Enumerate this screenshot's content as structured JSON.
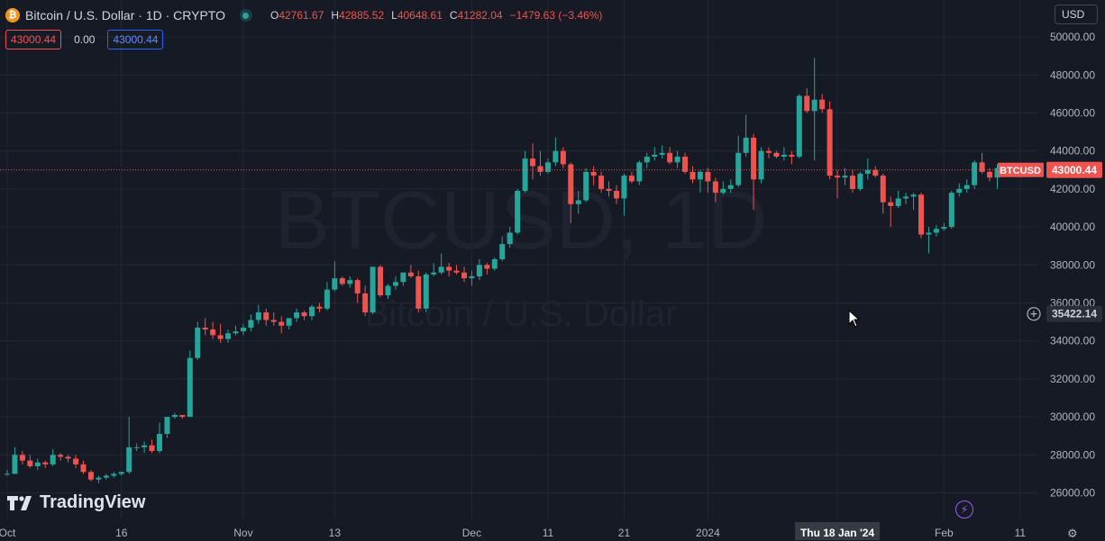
{
  "header": {
    "coin_glyph": "₿",
    "symbol_title": "Bitcoin / U.S. Dollar · 1D · CRYPTO",
    "ohlc": [
      {
        "key": "O",
        "value": "42761.67"
      },
      {
        "key": "H",
        "value": "42885.52"
      },
      {
        "key": "L",
        "value": "40648.61"
      },
      {
        "key": "C",
        "value": "41282.04"
      },
      {
        "key": "",
        "value": "−1479.63 (−3.46%)"
      }
    ],
    "sell_price": "43000.44",
    "spread": "0.00",
    "buy_price": "43000.44"
  },
  "currency_selector": "USD",
  "logo_text": "TradingView",
  "watermark": {
    "line1": "BTCUSD, 1D",
    "line2": "Bitcoin / U.S. Dollar"
  },
  "colors": {
    "up": "#26a69a",
    "down": "#ef5350",
    "background": "#161a25",
    "grid": "#232733",
    "accent": "#2962ff"
  },
  "chart_data": {
    "type": "candlestick",
    "series_label": "BTCUSD",
    "last_price": 43000.44,
    "last_price_label": "43000.44",
    "crosshair_price": 35422.14,
    "crosshair_label": "35422.14",
    "ylim": [
      25000,
      51000
    ],
    "y_ticks": [
      26000,
      28000,
      30000,
      32000,
      34000,
      36000,
      38000,
      40000,
      42000,
      44000,
      46000,
      48000,
      50000
    ],
    "y_tick_labels": [
      "26000.00",
      "28000.00",
      "30000.00",
      "32000.00",
      "34000.00",
      "36000.00",
      "38000.00",
      "40000.00",
      "42000.00",
      "44000.00",
      "46000.00",
      "48000.00",
      "50000.00"
    ],
    "x_ticks": [
      {
        "index": 0,
        "label": "Oct"
      },
      {
        "index": 15,
        "label": "16"
      },
      {
        "index": 31,
        "label": "Nov"
      },
      {
        "index": 43,
        "label": "13"
      },
      {
        "index": 61,
        "label": "Dec"
      },
      {
        "index": 71,
        "label": "11"
      },
      {
        "index": 81,
        "label": "21"
      },
      {
        "index": 92,
        "label": "2024"
      },
      {
        "index": 109,
        "label": "Thu 18 Jan '24",
        "highlight": true
      },
      {
        "index": 123,
        "label": "Feb"
      },
      {
        "index": 133,
        "label": "11"
      }
    ],
    "candles": [
      [
        27000,
        27200,
        26900,
        27000
      ],
      [
        27000,
        28400,
        27000,
        28000
      ],
      [
        28000,
        28200,
        27500,
        27700
      ],
      [
        27700,
        28000,
        27300,
        27400
      ],
      [
        27400,
        27800,
        27200,
        27600
      ],
      [
        27600,
        27700,
        27300,
        27500
      ],
      [
        27500,
        28300,
        27400,
        28000
      ],
      [
        28000,
        28100,
        27700,
        27900
      ],
      [
        27900,
        28000,
        27600,
        27800
      ],
      [
        27800,
        28000,
        27300,
        27500
      ],
      [
        27500,
        27700,
        27000,
        27100
      ],
      [
        27100,
        27200,
        26600,
        26700
      ],
      [
        26700,
        26900,
        26500,
        26800
      ],
      [
        26800,
        27000,
        26700,
        26900
      ],
      [
        26900,
        27100,
        26800,
        27000
      ],
      [
        27000,
        27100,
        26900,
        27100
      ],
      [
        27100,
        30000,
        27000,
        28400
      ],
      [
        28400,
        28600,
        28200,
        28400
      ],
      [
        28400,
        28700,
        28100,
        28500
      ],
      [
        28500,
        28800,
        28100,
        28200
      ],
      [
        28200,
        29700,
        28100,
        29100
      ],
      [
        29100,
        30000,
        28900,
        30000
      ],
      [
        30000,
        30200,
        29900,
        30100
      ],
      [
        30100,
        30000,
        29900,
        30000
      ],
      [
        30000,
        33500,
        30000,
        33100
      ],
      [
        33100,
        35000,
        33000,
        34700
      ],
      [
        34700,
        35200,
        34300,
        34600
      ],
      [
        34600,
        35000,
        34100,
        34300
      ],
      [
        34300,
        34900,
        33900,
        34100
      ],
      [
        34100,
        34600,
        33900,
        34400
      ],
      [
        34400,
        34800,
        34300,
        34500
      ],
      [
        34500,
        34900,
        34300,
        34700
      ],
      [
        34700,
        35400,
        34500,
        35100
      ],
      [
        35100,
        35900,
        34900,
        35500
      ],
      [
        35500,
        35700,
        34800,
        35100
      ],
      [
        35100,
        35500,
        34800,
        35000
      ],
      [
        35000,
        35300,
        34400,
        34800
      ],
      [
        34800,
        35200,
        34600,
        35200
      ],
      [
        35200,
        35700,
        35000,
        35500
      ],
      [
        35500,
        35600,
        35100,
        35300
      ],
      [
        35300,
        35900,
        35100,
        35800
      ],
      [
        35800,
        36000,
        35500,
        35700
      ],
      [
        35700,
        37100,
        35600,
        36700
      ],
      [
        36700,
        38200,
        36600,
        37300
      ],
      [
        37300,
        37400,
        36900,
        37000
      ],
      [
        37000,
        37400,
        36800,
        37200
      ],
      [
        37200,
        37300,
        36000,
        36500
      ],
      [
        36500,
        36900,
        35300,
        35500
      ],
      [
        35500,
        37900,
        35400,
        37900
      ],
      [
        37900,
        38000,
        36300,
        36400
      ],
      [
        36400,
        37000,
        36200,
        36900
      ],
      [
        36900,
        37400,
        36700,
        37100
      ],
      [
        37100,
        37600,
        36900,
        37600
      ],
      [
        37600,
        38000,
        37300,
        37400
      ],
      [
        37400,
        37700,
        35500,
        35700
      ],
      [
        35700,
        37600,
        35500,
        37500
      ],
      [
        37500,
        38100,
        37400,
        37600
      ],
      [
        37600,
        38600,
        37500,
        37900
      ],
      [
        37900,
        38100,
        37400,
        37700
      ],
      [
        37700,
        38000,
        37500,
        37600
      ],
      [
        37600,
        37900,
        37100,
        37300
      ],
      [
        37300,
        37700,
        36900,
        37400
      ],
      [
        37400,
        38300,
        37200,
        38000
      ],
      [
        38000,
        38100,
        37500,
        37800
      ],
      [
        37800,
        38400,
        37700,
        38300
      ],
      [
        38300,
        39500,
        38200,
        39100
      ],
      [
        39100,
        40000,
        38900,
        39700
      ],
      [
        39700,
        42000,
        39600,
        41900
      ],
      [
        41900,
        44000,
        41800,
        43600
      ],
      [
        43600,
        44400,
        42500,
        43200
      ],
      [
        43200,
        44000,
        42700,
        42900
      ],
      [
        42900,
        43600,
        42800,
        43400
      ],
      [
        43400,
        44700,
        43200,
        44000
      ],
      [
        44000,
        44200,
        43100,
        43300
      ],
      [
        43300,
        43400,
        40200,
        41200
      ],
      [
        41200,
        41900,
        40700,
        41400
      ],
      [
        41400,
        43100,
        41300,
        42900
      ],
      [
        42900,
        43200,
        42200,
        42700
      ],
      [
        42700,
        42900,
        41800,
        42000
      ],
      [
        42000,
        42400,
        41600,
        41900
      ],
      [
        41900,
        42200,
        41200,
        41500
      ],
      [
        41500,
        42800,
        40600,
        42700
      ],
      [
        42700,
        42900,
        42300,
        42400
      ],
      [
        42400,
        43500,
        42200,
        43400
      ],
      [
        43400,
        43900,
        43100,
        43700
      ],
      [
        43700,
        44200,
        43500,
        43800
      ],
      [
        43800,
        44300,
        43600,
        43900
      ],
      [
        43900,
        44200,
        43300,
        43400
      ],
      [
        43400,
        44000,
        43100,
        43700
      ],
      [
        43700,
        43900,
        42800,
        42900
      ],
      [
        42900,
        43200,
        42300,
        42500
      ],
      [
        42500,
        43000,
        41800,
        42900
      ],
      [
        42900,
        43100,
        41800,
        42400
      ],
      [
        42400,
        42600,
        41300,
        41800
      ],
      [
        41800,
        42400,
        41700,
        42000
      ],
      [
        42000,
        42500,
        41800,
        42200
      ],
      [
        42200,
        44800,
        42100,
        43900
      ],
      [
        43900,
        45900,
        43700,
        44700
      ],
      [
        44700,
        44900,
        40900,
        42500
      ],
      [
        42500,
        44200,
        42300,
        44000
      ],
      [
        44000,
        44200,
        43600,
        43900
      ],
      [
        43900,
        44000,
        43600,
        43700
      ],
      [
        43700,
        44200,
        43500,
        43800
      ],
      [
        43800,
        44000,
        43300,
        43700
      ],
      [
        43700,
        47000,
        43600,
        46900
      ],
      [
        46900,
        47300,
        46000,
        46100
      ],
      [
        46100,
        48900,
        43500,
        46700
      ],
      [
        46700,
        47000,
        46000,
        46200
      ],
      [
        46200,
        46600,
        42500,
        42700
      ],
      [
        42700,
        43000,
        41500,
        42600
      ],
      [
        42600,
        43100,
        42200,
        42700
      ],
      [
        42700,
        43000,
        41800,
        42000
      ],
      [
        42000,
        42900,
        41900,
        42800
      ],
      [
        42800,
        43600,
        42500,
        43000
      ],
      [
        43000,
        43200,
        42600,
        42700
      ],
      [
        42700,
        42800,
        40700,
        41300
      ],
      [
        41300,
        41600,
        40000,
        41100
      ],
      [
        41100,
        41900,
        41000,
        41500
      ],
      [
        41500,
        41800,
        41200,
        41600
      ],
      [
        41600,
        41800,
        40900,
        41700
      ],
      [
        41700,
        41800,
        39400,
        39600
      ],
      [
        39600,
        40000,
        38600,
        39700
      ],
      [
        39700,
        40100,
        39500,
        39900
      ],
      [
        39900,
        40200,
        39800,
        40000
      ],
      [
        40000,
        41900,
        39900,
        41800
      ],
      [
        41800,
        42300,
        41600,
        42000
      ],
      [
        42000,
        42500,
        41800,
        42200
      ],
      [
        42200,
        43500,
        42000,
        43400
      ],
      [
        43400,
        43900,
        42800,
        42900
      ],
      [
        42900,
        43100,
        42400,
        42600
      ],
      [
        42600,
        43300,
        42000,
        43100
      ],
      [
        43100,
        43300,
        42700,
        43000
      ]
    ]
  }
}
